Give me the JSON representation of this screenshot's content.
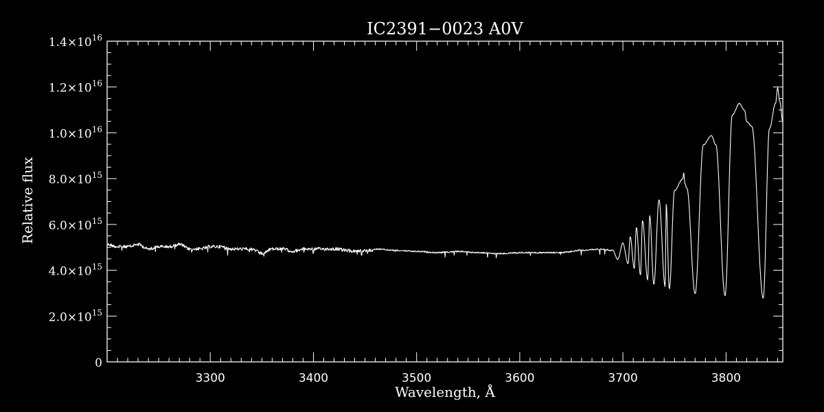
{
  "chart_data": {
    "type": "line",
    "title": "IC2391−0023  A0V",
    "xlabel": "Wavelength, Å",
    "ylabel": "Relative flux",
    "xlim": [
      3200,
      3855
    ],
    "ylim": [
      0,
      1.4e+16
    ],
    "x_ticks": [
      3300,
      3400,
      3500,
      3600,
      3700,
      3800
    ],
    "x_tick_labels": [
      "3300",
      "3400",
      "3500",
      "3600",
      "3700",
      "3800"
    ],
    "y_ticks": [
      {
        "value": 0,
        "mantissa": "0",
        "exponent": ""
      },
      {
        "value": 2000000000000000.0,
        "mantissa": "2.0×10",
        "exponent": "15"
      },
      {
        "value": 4000000000000000.0,
        "mantissa": "4.0×10",
        "exponent": "15"
      },
      {
        "value": 6000000000000000.0,
        "mantissa": "6.0×10",
        "exponent": "15"
      },
      {
        "value": 8000000000000000.0,
        "mantissa": "8.0×10",
        "exponent": "15"
      },
      {
        "value": 1e+16,
        "mantissa": "1.0×10",
        "exponent": "16"
      },
      {
        "value": 1.2e+16,
        "mantissa": "1.2×10",
        "exponent": "16"
      },
      {
        "value": 1.4e+16,
        "mantissa": "1.4×10",
        "exponent": "16"
      }
    ],
    "grid": false,
    "legend": "none",
    "colors": {
      "background": "#000000",
      "foreground": "#ffffff"
    },
    "series": [
      {
        "x": [
          3200,
          3210,
          3220,
          3230,
          3240,
          3250,
          3260,
          3270,
          3280,
          3290,
          3300,
          3310,
          3320,
          3330,
          3340,
          3350,
          3360,
          3370,
          3380,
          3390,
          3400,
          3420,
          3440,
          3460,
          3480,
          3500,
          3520,
          3540,
          3560,
          3580,
          3600,
          3620,
          3640,
          3660,
          3680,
          3690,
          3695,
          3700,
          3705,
          3707,
          3711,
          3713,
          3717,
          3719,
          3724,
          3726,
          3730,
          3735,
          3741,
          3742,
          3745,
          3750,
          3758,
          3759,
          3760,
          3762,
          3770,
          3778,
          3786,
          3790,
          3799,
          3806,
          3813,
          3818,
          3820,
          3825,
          3836,
          3842,
          3848,
          3850,
          3852,
          3855
        ],
        "y": [
          5200000000000000.0,
          5100000000000000.0,
          5100000000000000.0,
          5200000000000000.0,
          5000000000000000.0,
          5100000000000000.0,
          5100000000000000.0,
          5200000000000000.0,
          5000000000000000.0,
          5000000000000000.0,
          5100000000000000.0,
          5100000000000000.0,
          5000000000000000.0,
          5000000000000000.0,
          5000000000000000.0,
          4800000000000000.0,
          5000000000000000.0,
          5000000000000000.0,
          4900000000000000.0,
          5000000000000000.0,
          5000000000000000.0,
          5000000000000000.0,
          4900000000000000.0,
          4950000000000000.0,
          4900000000000000.0,
          4850000000000000.0,
          4800000000000000.0,
          4850000000000000.0,
          4800000000000000.0,
          4750000000000000.0,
          4800000000000000.0,
          4800000000000000.0,
          4800000000000000.0,
          4900000000000000.0,
          4950000000000000.0,
          4900000000000000.0,
          4500000000000000.0,
          5200000000000000.0,
          4300000000000000.0,
          5500000000000000.0,
          4100000000000000.0,
          5900000000000000.0,
          3800000000000000.0,
          6200000000000000.0,
          3600000000000000.0,
          6400000000000000.0,
          3400000000000000.0,
          7100000000000000.0,
          3300000000000000.0,
          6900000000000000.0,
          3200000000000000.0,
          7500000000000000.0,
          8000000000000000.0,
          8300000000000000.0,
          7800000000000000.0,
          7600000000000000.0,
          3000000000000000.0,
          9500000000000000.0,
          9900000000000000.0,
          9500000000000000.0,
          2900000000000000.0,
          1.08e+16,
          1.13e+16,
          1.1e+16,
          1.05e+16,
          1.03e+16,
          2800000000000000.0,
          1.02e+16,
          1.13e+16,
          1.2e+16,
          1.14e+16,
          1.05e+16
        ]
      }
    ]
  }
}
